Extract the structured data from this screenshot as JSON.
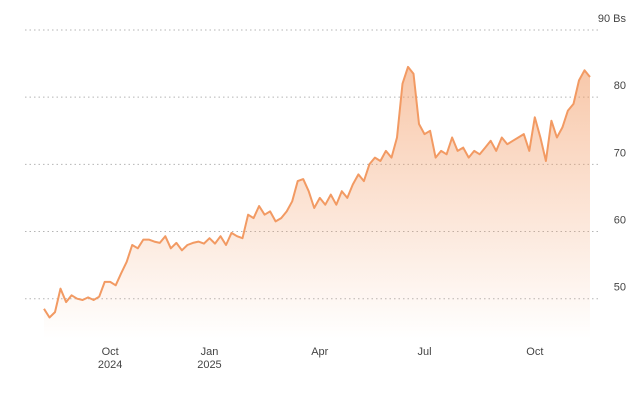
{
  "chart_data": {
    "type": "area-line",
    "categories": [
      null,
      null,
      null,
      null,
      null,
      null,
      null,
      null,
      null,
      null,
      null,
      null,
      "Oct\n2024",
      null,
      null,
      null,
      null,
      null,
      null,
      null,
      null,
      null,
      null,
      null,
      null,
      null,
      null,
      null,
      null,
      null,
      "Jan\n2025",
      null,
      null,
      null,
      null,
      null,
      null,
      null,
      null,
      null,
      null,
      null,
      null,
      null,
      null,
      null,
      null,
      null,
      null,
      null,
      "Apr",
      null,
      null,
      null,
      null,
      null,
      null,
      null,
      null,
      null,
      null,
      null,
      null,
      null,
      null,
      null,
      null,
      null,
      null,
      "Jul",
      null,
      null,
      null,
      null,
      null,
      null,
      null,
      null,
      null,
      null,
      null,
      null,
      null,
      null,
      null,
      null,
      null,
      null,
      null,
      "Oct",
      null,
      null,
      null,
      null,
      null,
      null,
      null,
      null,
      null,
      null
    ],
    "values": [
      48.5,
      47.2,
      48,
      51.5,
      49.5,
      50.5,
      50,
      49.8,
      50.2,
      49.8,
      50.3,
      52.5,
      52.5,
      52,
      53.8,
      55.5,
      58,
      57.5,
      58.8,
      58.8,
      58.5,
      58.3,
      59.3,
      57.5,
      58.3,
      57.2,
      58,
      58.3,
      58.5,
      58.2,
      59,
      58.2,
      59.3,
      58,
      59.8,
      59.3,
      59,
      62.5,
      62,
      63.8,
      62.5,
      63,
      61.5,
      62,
      63,
      64.5,
      67.5,
      67.8,
      66,
      63.5,
      65,
      64,
      65.5,
      64,
      66,
      65,
      67,
      68.5,
      67.5,
      70,
      71,
      70.5,
      72,
      71,
      74,
      82,
      84.5,
      83.5,
      76,
      74.5,
      75,
      71,
      72,
      71.5,
      74,
      72,
      72.5,
      71,
      72,
      71.5,
      72.5,
      73.5,
      72,
      74,
      73,
      73.5,
      74,
      74.5,
      72,
      77,
      74,
      70.5,
      76.5,
      74,
      75.5,
      78,
      79,
      82.5,
      84,
      83
    ],
    "color": "#f29a63",
    "ylim": [
      44,
      90
    ],
    "yticks": [
      {
        "value": 90,
        "label": "90 Bs"
      },
      80,
      70,
      60,
      50
    ],
    "grid": true
  }
}
